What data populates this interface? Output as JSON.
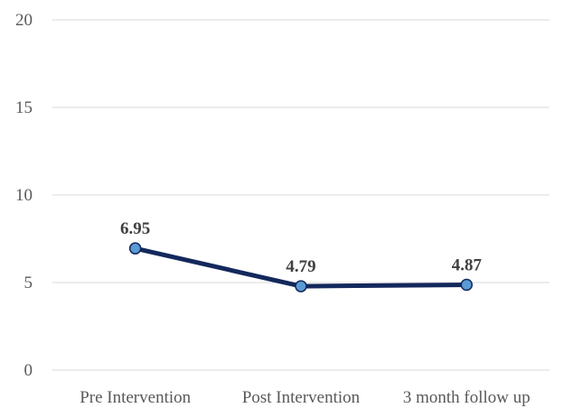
{
  "chart_data": {
    "type": "line",
    "categories": [
      "Pre Intervention",
      "Post Intervention",
      "3 month follow up"
    ],
    "series": [
      {
        "values": [
          6.95,
          4.79,
          4.87
        ],
        "data_labels": [
          "6.95",
          "4.79",
          "4.87"
        ],
        "line_color": "#13285c",
        "marker_fill": "#5b9bd5",
        "marker_stroke": "#13285c"
      }
    ],
    "ylim": [
      0,
      20
    ],
    "yticks": [
      0,
      5,
      10,
      15,
      20
    ],
    "ytick_labels": [
      "0",
      "5",
      "10",
      "15",
      "20"
    ],
    "grid": true,
    "legend": "none",
    "title": "",
    "xlabel": "",
    "ylabel": ""
  }
}
